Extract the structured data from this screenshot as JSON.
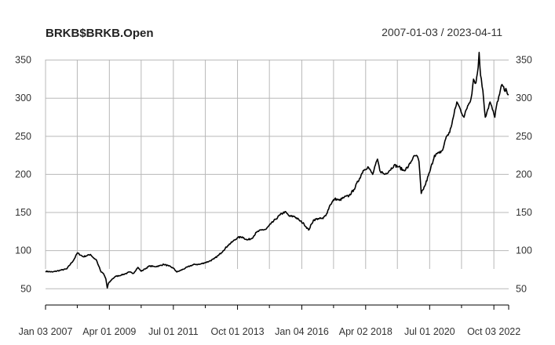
{
  "chart_data": {
    "type": "line",
    "title": "BRKB$BRKB.Open",
    "date_range": "2007-01-03 / 2023-04-11",
    "x_start": "2007-01-03",
    "x_end": "2023-04-11",
    "ylim": [
      40,
      365
    ],
    "yticks": [
      50,
      100,
      150,
      200,
      250,
      300,
      350
    ],
    "xtick_labels": [
      "Jan 03 2007",
      "Apr 01 2009",
      "Jul 01 2011",
      "Oct 01 2013",
      "Jan 04 2016",
      "Apr 02 2018",
      "Jul 01 2020",
      "Oct 03 2022"
    ],
    "xtick_dates": [
      "2007-01-03",
      "2009-04-01",
      "2011-07-01",
      "2013-10-01",
      "2016-01-04",
      "2018-04-02",
      "2020-07-01",
      "2022-10-03"
    ],
    "minor_tick_dates": [
      "2008-02-14",
      "2010-05-14",
      "2012-08-14",
      "2014-11-14",
      "2017-02-14",
      "2019-05-14",
      "2021-08-14"
    ],
    "grid": true,
    "legend": "none",
    "color": "#000000",
    "series": [
      {
        "x": [
          "2007-01-03",
          "2007-04-01",
          "2007-07-01",
          "2007-10-01",
          "2008-01-01",
          "2008-02-15",
          "2008-05-01",
          "2008-08-01",
          "2008-09-15",
          "2008-10-15",
          "2008-11-15",
          "2008-12-15",
          "2009-01-15",
          "2009-02-15",
          "2009-03-05",
          "2009-03-20",
          "2009-05-01",
          "2009-06-15",
          "2009-09-01",
          "2009-11-01",
          "2009-12-15",
          "2010-02-01",
          "2010-04-01",
          "2010-05-15",
          "2010-07-01",
          "2010-09-01",
          "2010-11-01",
          "2011-01-01",
          "2011-03-01",
          "2011-05-01",
          "2011-07-01",
          "2011-08-15",
          "2011-10-01",
          "2011-12-01",
          "2012-02-01",
          "2012-04-01",
          "2012-06-01",
          "2012-08-01",
          "2012-10-01",
          "2012-12-01",
          "2013-02-01",
          "2013-04-01",
          "2013-06-01",
          "2013-08-01",
          "2013-10-01",
          "2013-12-01",
          "2014-02-01",
          "2014-04-01",
          "2014-06-01",
          "2014-08-01",
          "2014-10-01",
          "2014-12-01",
          "2015-02-01",
          "2015-04-01",
          "2015-06-01",
          "2015-08-01",
          "2015-10-01",
          "2015-12-01",
          "2016-02-01",
          "2016-04-01",
          "2016-06-01",
          "2016-08-01",
          "2016-10-01",
          "2016-11-15",
          "2017-01-01",
          "2017-03-01",
          "2017-05-01",
          "2017-07-01",
          "2017-09-01",
          "2017-11-01",
          "2018-01-15",
          "2018-03-01",
          "2018-05-01",
          "2018-07-01",
          "2018-09-01",
          "2018-10-01",
          "2018-12-01",
          "2019-02-01",
          "2019-04-01",
          "2019-06-01",
          "2019-08-01",
          "2019-10-01",
          "2019-12-01",
          "2020-01-15",
          "2020-02-15",
          "2020-03-15",
          "2020-05-01",
          "2020-07-01",
          "2020-09-01",
          "2020-11-01",
          "2020-12-15",
          "2021-02-01",
          "2021-03-15",
          "2021-05-01",
          "2021-06-15",
          "2021-08-01",
          "2021-09-15",
          "2021-11-01",
          "2021-12-15",
          "2022-01-15",
          "2022-02-15",
          "2022-03-15",
          "2022-03-28",
          "2022-04-15",
          "2022-05-15",
          "2022-06-15",
          "2022-07-15",
          "2022-08-15",
          "2022-09-15",
          "2022-10-15",
          "2022-11-15",
          "2022-12-15",
          "2023-01-15",
          "2023-02-15",
          "2023-03-15",
          "2023-04-11"
        ],
        "y": [
          73,
          72,
          74,
          76,
          88,
          97,
          92,
          95,
          90,
          88,
          80,
          72,
          70,
          63,
          51,
          57,
          62,
          66,
          68,
          70,
          72,
          70,
          78,
          73,
          76,
          80,
          79,
          80,
          82,
          80,
          77,
          72,
          74,
          77,
          80,
          82,
          82,
          84,
          86,
          89,
          94,
          100,
          107,
          112,
          117,
          118,
          114,
          116,
          124,
          127,
          128,
          135,
          141,
          147,
          151,
          145,
          145,
          140,
          135,
          127,
          140,
          142,
          142,
          148,
          160,
          168,
          166,
          170,
          172,
          180,
          195,
          205,
          210,
          200,
          220,
          205,
          200,
          205,
          212,
          210,
          205,
          210,
          222,
          225,
          217,
          175,
          185,
          203,
          225,
          228,
          232,
          250,
          255,
          275,
          295,
          285,
          275,
          290,
          300,
          325,
          320,
          340,
          360,
          330,
          310,
          275,
          285,
          295,
          285,
          275,
          295,
          305,
          318,
          310,
          310,
          305
        ]
      }
    ]
  }
}
